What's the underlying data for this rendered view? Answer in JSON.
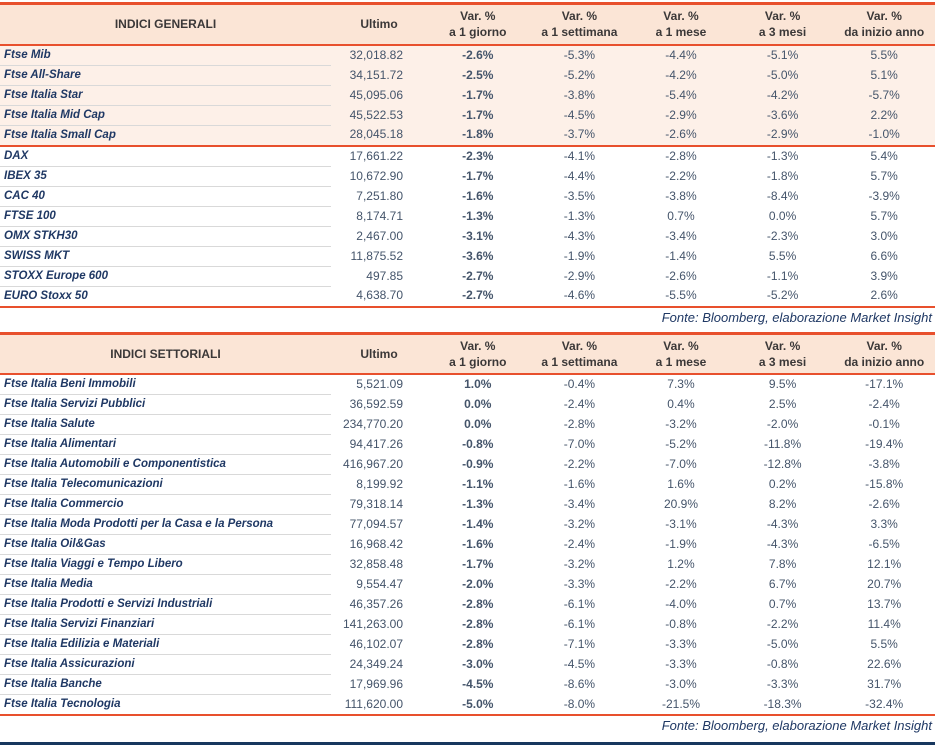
{
  "labels": {
    "ultimo": "Ultimo",
    "var": "Var. %",
    "periods": [
      "a 1 giorno",
      "a 1 settimana",
      "a 1 mese",
      "a 3 mesi",
      "da inizio anno"
    ]
  },
  "source": "Fonte: Bloomberg, elaborazione Market Insight",
  "colors": {
    "accent": "#e8502d",
    "header_bg": "#fbe5d6",
    "highlight_row_bg": "#fdf0e8",
    "index_name_text": "#1f3864",
    "number_text": "#44546a"
  },
  "tables": [
    {
      "title": "INDICI GENERALI",
      "groups": [
        {
          "highlight": true,
          "rows": [
            {
              "name": "Ftse Mib",
              "last": "32,018.82",
              "d1": "-2.6%",
              "w1": "-5.3%",
              "m1": "-4.4%",
              "m3": "-5.1%",
              "ytd": "5.5%"
            },
            {
              "name": "Ftse All-Share",
              "last": "34,151.72",
              "d1": "-2.5%",
              "w1": "-5.2%",
              "m1": "-4.2%",
              "m3": "-5.0%",
              "ytd": "5.1%"
            },
            {
              "name": "Ftse Italia Star",
              "last": "45,095.06",
              "d1": "-1.7%",
              "w1": "-3.8%",
              "m1": "-5.4%",
              "m3": "-4.2%",
              "ytd": "-5.7%"
            },
            {
              "name": "Ftse Italia Mid Cap",
              "last": "45,522.53",
              "d1": "-1.7%",
              "w1": "-4.5%",
              "m1": "-2.9%",
              "m3": "-3.6%",
              "ytd": "2.2%"
            },
            {
              "name": "Ftse Italia Small Cap",
              "last": "28,045.18",
              "d1": "-1.8%",
              "w1": "-3.7%",
              "m1": "-2.6%",
              "m3": "-2.9%",
              "ytd": "-1.0%"
            }
          ]
        },
        {
          "highlight": false,
          "rows": [
            {
              "name": "DAX",
              "last": "17,661.22",
              "d1": "-2.3%",
              "w1": "-4.1%",
              "m1": "-2.8%",
              "m3": "-1.3%",
              "ytd": "5.4%"
            },
            {
              "name": "IBEX 35",
              "last": "10,672.90",
              "d1": "-1.7%",
              "w1": "-4.4%",
              "m1": "-2.2%",
              "m3": "-1.8%",
              "ytd": "5.7%"
            },
            {
              "name": "CAC 40",
              "last": "7,251.80",
              "d1": "-1.6%",
              "w1": "-3.5%",
              "m1": "-3.8%",
              "m3": "-8.4%",
              "ytd": "-3.9%"
            },
            {
              "name": "FTSE 100",
              "last": "8,174.71",
              "d1": "-1.3%",
              "w1": "-1.3%",
              "m1": "0.7%",
              "m3": "0.0%",
              "ytd": "5.7%"
            },
            {
              "name": "OMX STKH30",
              "last": "2,467.00",
              "d1": "-3.1%",
              "w1": "-4.3%",
              "m1": "-3.4%",
              "m3": "-2.3%",
              "ytd": "3.0%"
            },
            {
              "name": "SWISS MKT",
              "last": "11,875.52",
              "d1": "-3.6%",
              "w1": "-1.9%",
              "m1": "-1.4%",
              "m3": "5.5%",
              "ytd": "6.6%"
            },
            {
              "name": "STOXX Europe 600",
              "last": "497.85",
              "d1": "-2.7%",
              "w1": "-2.9%",
              "m1": "-2.6%",
              "m3": "-1.1%",
              "ytd": "3.9%"
            },
            {
              "name": "EURO Stoxx 50",
              "last": "4,638.70",
              "d1": "-2.7%",
              "w1": "-4.6%",
              "m1": "-5.5%",
              "m3": "-5.2%",
              "ytd": "2.6%"
            }
          ]
        }
      ]
    },
    {
      "title": "INDICI SETTORIALI",
      "groups": [
        {
          "highlight": false,
          "rows": [
            {
              "name": "Ftse Italia Beni Immobili",
              "last": "5,521.09",
              "d1": "1.0%",
              "w1": "-0.4%",
              "m1": "7.3%",
              "m3": "9.5%",
              "ytd": "-17.1%"
            },
            {
              "name": "Ftse Italia Servizi Pubblici",
              "last": "36,592.59",
              "d1": "0.0%",
              "w1": "-2.4%",
              "m1": "0.4%",
              "m3": "2.5%",
              "ytd": "-2.4%"
            },
            {
              "name": "Ftse Italia Salute",
              "last": "234,770.20",
              "d1": "0.0%",
              "w1": "-2.8%",
              "m1": "-3.2%",
              "m3": "-2.0%",
              "ytd": "-0.1%"
            },
            {
              "name": "Ftse Italia Alimentari",
              "last": "94,417.26",
              "d1": "-0.8%",
              "w1": "-7.0%",
              "m1": "-5.2%",
              "m3": "-11.8%",
              "ytd": "-19.4%"
            },
            {
              "name": "Ftse Italia Automobili e Componentistica",
              "last": "416,967.20",
              "d1": "-0.9%",
              "w1": "-2.2%",
              "m1": "-7.0%",
              "m3": "-12.8%",
              "ytd": "-3.8%"
            },
            {
              "name": "Ftse Italia Telecomunicazioni",
              "last": "8,199.92",
              "d1": "-1.1%",
              "w1": "-1.6%",
              "m1": "1.6%",
              "m3": "0.2%",
              "ytd": "-15.8%"
            },
            {
              "name": "Ftse Italia Commercio",
              "last": "79,318.14",
              "d1": "-1.3%",
              "w1": "-3.4%",
              "m1": "20.9%",
              "m3": "8.2%",
              "ytd": "-2.6%"
            },
            {
              "name": "Ftse Italia Moda Prodotti per la Casa e la Persona",
              "last": "77,094.57",
              "d1": "-1.4%",
              "w1": "-3.2%",
              "m1": "-3.1%",
              "m3": "-4.3%",
              "ytd": "3.3%"
            },
            {
              "name": "Ftse Italia Oil&Gas",
              "last": "16,968.42",
              "d1": "-1.6%",
              "w1": "-2.4%",
              "m1": "-1.9%",
              "m3": "-4.3%",
              "ytd": "-6.5%"
            },
            {
              "name": "Ftse Italia Viaggi e Tempo Libero",
              "last": "32,858.48",
              "d1": "-1.7%",
              "w1": "-3.2%",
              "m1": "1.2%",
              "m3": "7.8%",
              "ytd": "12.1%"
            },
            {
              "name": "Ftse Italia Media",
              "last": "9,554.47",
              "d1": "-2.0%",
              "w1": "-3.3%",
              "m1": "-2.2%",
              "m3": "6.7%",
              "ytd": "20.7%"
            },
            {
              "name": "Ftse Italia Prodotti e Servizi Industriali",
              "last": "46,357.26",
              "d1": "-2.8%",
              "w1": "-6.1%",
              "m1": "-4.0%",
              "m3": "0.7%",
              "ytd": "13.7%"
            },
            {
              "name": "Ftse Italia Servizi Finanziari",
              "last": "141,263.00",
              "d1": "-2.8%",
              "w1": "-6.1%",
              "m1": "-0.8%",
              "m3": "-2.2%",
              "ytd": "11.4%"
            },
            {
              "name": "Ftse Italia Edilizia e Materiali",
              "last": "46,102.07",
              "d1": "-2.8%",
              "w1": "-7.1%",
              "m1": "-3.3%",
              "m3": "-5.0%",
              "ytd": "5.5%"
            },
            {
              "name": "Ftse Italia Assicurazioni",
              "last": "24,349.24",
              "d1": "-3.0%",
              "w1": "-4.5%",
              "m1": "-3.3%",
              "m3": "-0.8%",
              "ytd": "22.6%"
            },
            {
              "name": "Ftse Italia Banche",
              "last": "17,969.96",
              "d1": "-4.5%",
              "w1": "-8.6%",
              "m1": "-3.0%",
              "m3": "-3.3%",
              "ytd": "31.7%"
            },
            {
              "name": "Ftse Italia Tecnologia",
              "last": "111,620.00",
              "d1": "-5.0%",
              "w1": "-8.0%",
              "m1": "-21.5%",
              "m3": "-18.3%",
              "ytd": "-32.4%"
            }
          ]
        }
      ]
    }
  ]
}
